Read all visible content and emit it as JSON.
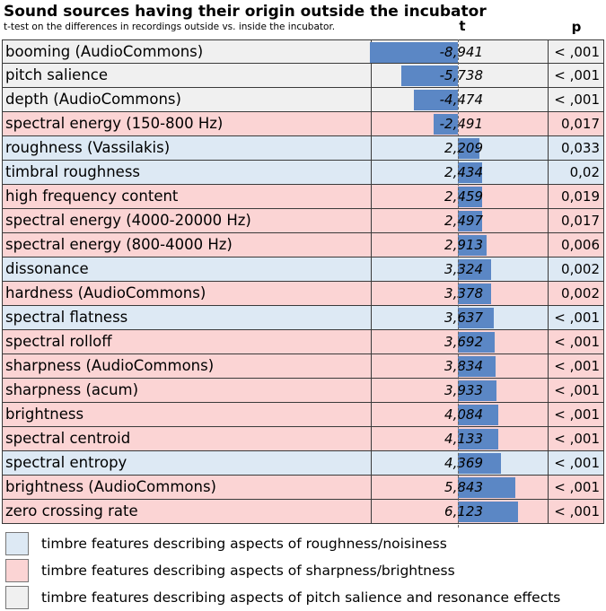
{
  "chart_data": {
    "type": "bar",
    "title": "Sound sources having their origin outside the incubator",
    "subtitle": "t-test on the differences in recordings outside vs. inside the incubator.",
    "t_header": "t",
    "p_header": "p",
    "xlim": [
      -10,
      7
    ],
    "categories": [
      "booming (AudioCommons)",
      "pitch salience",
      "depth (AudioCommons)",
      "spectral energy (150-800 Hz)",
      "roughness (Vassilakis)",
      "timbral roughness",
      "high frequency content",
      "spectral energy (4000-20000 Hz)",
      "spectral energy (800-4000 Hz)",
      "dissonance",
      "hardness (AudioCommons)",
      "spectral flatness",
      "spectral rolloff",
      "sharpness (AudioCommons)",
      "sharpness (acum)",
      "brightness",
      "spectral centroid",
      "spectral entropy",
      "brightness (AudioCommons)",
      "zero crossing rate"
    ],
    "values": [
      -8.941,
      -5.738,
      -4.474,
      -2.491,
      2.209,
      2.434,
      2.459,
      2.497,
      2.913,
      3.324,
      3.378,
      3.637,
      3.692,
      3.834,
      3.933,
      4.084,
      4.133,
      4.369,
      5.843,
      6.123
    ],
    "t_labels": [
      "-8,941",
      "-5,738",
      "-4,474",
      "-2,491",
      "2,209",
      "2,434",
      "2,459",
      "2,497",
      "2,913",
      "3,324",
      "3,378",
      "3,637",
      "3,692",
      "3,834",
      "3,933",
      "4,084",
      "4,133",
      "4,369",
      "5,843",
      "6,123"
    ],
    "p_labels": [
      "< ,001",
      "< ,001",
      "< ,001",
      "0,017",
      "0,033",
      "0,02",
      "0,019",
      "0,017",
      "0,006",
      "0,002",
      "0,002",
      "< ,001",
      "< ,001",
      "< ,001",
      "< ,001",
      "< ,001",
      "< ,001",
      "< ,001",
      "< ,001",
      "< ,001"
    ],
    "groups": [
      "pitch",
      "pitch",
      "pitch",
      "sharp",
      "rough",
      "rough",
      "sharp",
      "sharp",
      "sharp",
      "rough",
      "sharp",
      "rough",
      "sharp",
      "sharp",
      "sharp",
      "sharp",
      "sharp",
      "rough",
      "sharp",
      "sharp"
    ],
    "group_colors": {
      "rough": "#dde9f4",
      "sharp": "#fbd4d4",
      "pitch": "#f0f0f0"
    },
    "bar_color": "#5b87c5",
    "legend": [
      {
        "group": "rough",
        "label": "timbre features describing aspects of roughness/noisiness"
      },
      {
        "group": "sharp",
        "label": "timbre features describing aspects of sharpness/brightness"
      },
      {
        "group": "pitch",
        "label": "timbre features describing aspects of pitch salience and resonance effects"
      }
    ]
  }
}
